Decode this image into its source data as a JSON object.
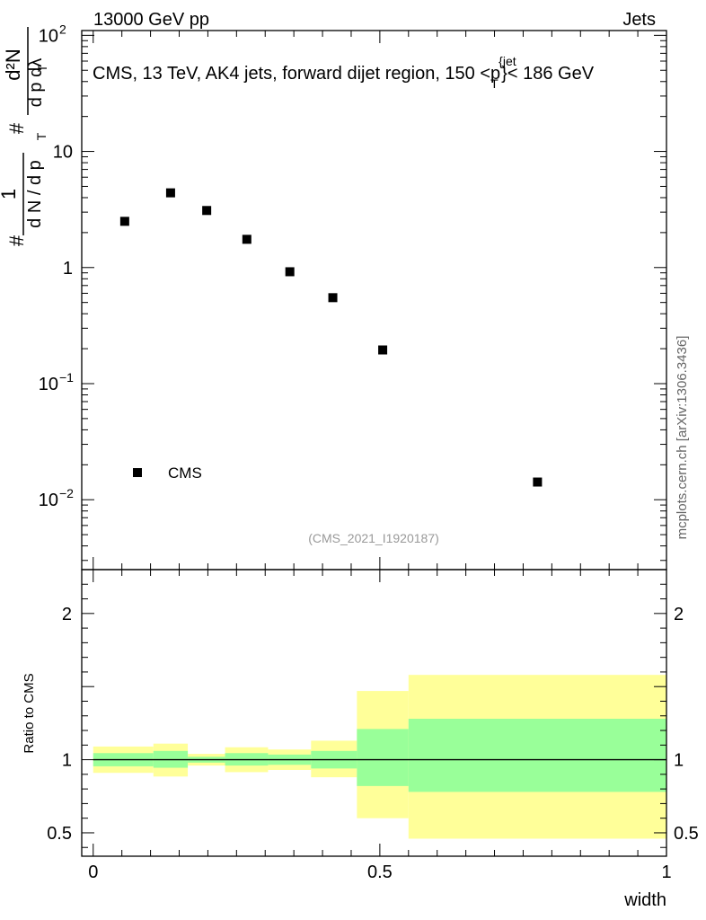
{
  "header": {
    "left": "13000 GeV pp",
    "right": "Jets"
  },
  "side_label": "mcplots.cern.ch [arXiv:1306.3436]",
  "chart_data": [
    {
      "type": "scatter",
      "title": "CMS, 13 TeV, AK4 jets, forward dijet region, 150 <p_T^{jet}< 186 GeV",
      "ylabel": "# 1/(dN/dp_T) # d^2N/(dp_T dλ)",
      "yscale": "log",
      "ylim": [
        0.0025,
        110
      ],
      "xlim": [
        -0.02,
        1.0
      ],
      "y_tick_labels": [
        {
          "base": "10",
          "exp": "2",
          "v": 100
        },
        {
          "base": "10",
          "exp": "",
          "v": 10
        },
        {
          "base": "1",
          "exp": "",
          "v": 1
        },
        {
          "base": "10",
          "exp": "−1",
          "v": 0.1
        },
        {
          "base": "10",
          "exp": "−2",
          "v": 0.01
        }
      ],
      "series": [
        {
          "name": "CMS",
          "points": [
            {
              "x": 0.055,
              "y": 2.5
            },
            {
              "x": 0.135,
              "y": 4.4
            },
            {
              "x": 0.198,
              "y": 3.1
            },
            {
              "x": 0.268,
              "y": 1.75
            },
            {
              "x": 0.343,
              "y": 0.92
            },
            {
              "x": 0.418,
              "y": 0.55
            },
            {
              "x": 0.505,
              "y": 0.195
            },
            {
              "x": 0.775,
              "y": 0.0142
            }
          ]
        }
      ],
      "legend": {
        "label": "CMS",
        "position": "bottom-left"
      },
      "annotation": "(CMS_2021_I1920187)"
    },
    {
      "type": "area",
      "ylabel": "Ratio to CMS",
      "xlabel": "width",
      "ylim": [
        0.34,
        2.3
      ],
      "xlim": [
        -0.02,
        1.0
      ],
      "x_tick_labels": [
        "0",
        "0.5",
        "1"
      ],
      "y_tick_labels": [
        "2",
        "1",
        "0.5"
      ],
      "reference_line": 1.0,
      "bands": [
        {
          "x0": 0.0,
          "x1": 0.105,
          "inner": [
            0.955,
            1.045
          ],
          "outer": [
            0.91,
            1.09
          ]
        },
        {
          "x0": 0.105,
          "x1": 0.165,
          "inner": [
            0.945,
            1.06
          ],
          "outer": [
            0.885,
            1.11
          ]
        },
        {
          "x0": 0.165,
          "x1": 0.23,
          "inner": [
            0.98,
            1.02
          ],
          "outer": [
            0.96,
            1.04
          ]
        },
        {
          "x0": 0.23,
          "x1": 0.305,
          "inner": [
            0.96,
            1.045
          ],
          "outer": [
            0.915,
            1.085
          ]
        },
        {
          "x0": 0.305,
          "x1": 0.38,
          "inner": [
            0.965,
            1.035
          ],
          "outer": [
            0.93,
            1.07
          ]
        },
        {
          "x0": 0.38,
          "x1": 0.46,
          "inner": [
            0.94,
            1.06
          ],
          "outer": [
            0.88,
            1.13
          ]
        },
        {
          "x0": 0.46,
          "x1": 0.55,
          "inner": [
            0.82,
            1.21
          ],
          "outer": [
            0.6,
            1.47
          ]
        },
        {
          "x0": 0.55,
          "x1": 1.0,
          "inner": [
            0.78,
            1.28
          ],
          "outer": [
            0.46,
            1.58
          ]
        }
      ]
    }
  ]
}
